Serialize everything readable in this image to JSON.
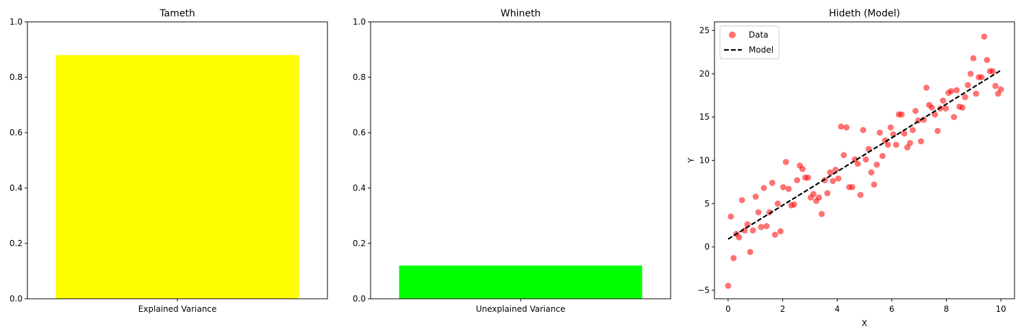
{
  "chart_data": [
    {
      "type": "bar",
      "title": "Tameth",
      "categories": [
        "Explained Variance"
      ],
      "values": [
        0.88
      ],
      "ylim": [
        0,
        1
      ],
      "yticks": [
        "0.0",
        "0.2",
        "0.4",
        "0.6",
        "0.8",
        "1.0"
      ],
      "color": "#ffff00",
      "xlabel": "",
      "ylabel": "",
      "grid": false
    },
    {
      "type": "bar",
      "title": "Whineth",
      "categories": [
        "Unexplained Variance"
      ],
      "values": [
        0.12
      ],
      "ylim": [
        0,
        1
      ],
      "yticks": [
        "0.0",
        "0.2",
        "0.4",
        "0.6",
        "0.8",
        "1.0"
      ],
      "color": "#00ff00",
      "xlabel": "",
      "ylabel": "",
      "grid": false
    },
    {
      "type": "scatter",
      "title": "Hideth (Model)",
      "xlabel": "X",
      "ylabel": "Y",
      "xlim": [
        -0.5,
        10.5
      ],
      "ylim": [
        -6.0,
        26.0
      ],
      "xticks": [
        "0",
        "2",
        "4",
        "6",
        "8",
        "10"
      ],
      "yticks": [
        "−5",
        "0",
        "5",
        "10",
        "15",
        "20",
        "25"
      ],
      "legend": "top-left",
      "grid": false,
      "series": [
        {
          "name": "Data",
          "kind": "scatter",
          "color": "#ff0000",
          "x": [
            0.0,
            0.1,
            0.2,
            0.3,
            0.4,
            0.51,
            0.61,
            0.71,
            0.81,
            0.91,
            1.01,
            1.11,
            1.21,
            1.31,
            1.41,
            1.52,
            1.62,
            1.72,
            1.82,
            1.92,
            2.02,
            2.12,
            2.22,
            2.32,
            2.42,
            2.53,
            2.63,
            2.73,
            2.83,
            2.93,
            3.03,
            3.13,
            3.23,
            3.33,
            3.43,
            3.54,
            3.64,
            3.74,
            3.84,
            3.94,
            4.04,
            4.14,
            4.24,
            4.34,
            4.44,
            4.55,
            4.65,
            4.75,
            4.85,
            4.95,
            5.05,
            5.15,
            5.25,
            5.35,
            5.45,
            5.56,
            5.66,
            5.76,
            5.86,
            5.96,
            6.06,
            6.16,
            6.26,
            6.36,
            6.46,
            6.57,
            6.67,
            6.77,
            6.87,
            6.97,
            7.07,
            7.17,
            7.27,
            7.37,
            7.47,
            7.58,
            7.68,
            7.78,
            7.88,
            7.98,
            8.08,
            8.18,
            8.28,
            8.38,
            8.48,
            8.59,
            8.69,
            8.79,
            8.89,
            8.99,
            9.09,
            9.19,
            9.29,
            9.39,
            9.49,
            9.6,
            9.7,
            9.8,
            9.9,
            10.0
          ],
          "y": [
            -4.5,
            3.5,
            -1.3,
            1.5,
            1.1,
            5.4,
            1.9,
            2.6,
            -0.6,
            1.9,
            5.8,
            4.0,
            2.3,
            6.8,
            2.4,
            4.0,
            7.4,
            1.4,
            5.0,
            1.8,
            6.9,
            9.8,
            6.7,
            4.8,
            4.9,
            7.7,
            9.4,
            9.0,
            8.0,
            8.0,
            5.7,
            6.1,
            5.3,
            5.7,
            3.8,
            7.7,
            6.2,
            8.6,
            7.6,
            8.9,
            7.9,
            13.9,
            10.6,
            13.8,
            6.9,
            6.9,
            10.1,
            9.6,
            6.0,
            13.5,
            10.1,
            11.3,
            8.6,
            7.2,
            9.5,
            13.2,
            10.5,
            12.3,
            11.8,
            13.8,
            13.0,
            11.8,
            15.3,
            15.3,
            13.1,
            11.5,
            12.0,
            13.5,
            15.7,
            14.6,
            12.2,
            14.7,
            18.4,
            16.4,
            16.1,
            15.3,
            13.4,
            16.0,
            16.9,
            16.0,
            17.8,
            18.0,
            15.0,
            18.1,
            16.2,
            16.1,
            17.3,
            18.7,
            20.0,
            21.8,
            17.7,
            19.6,
            19.6,
            24.3,
            21.6,
            20.3,
            20.3,
            18.6,
            17.7,
            18.2
          ]
        },
        {
          "name": "Model",
          "kind": "line",
          "style": "dashed",
          "color": "#000000",
          "x": [
            0,
            10
          ],
          "y": [
            0.9,
            20.4
          ]
        }
      ]
    }
  ]
}
